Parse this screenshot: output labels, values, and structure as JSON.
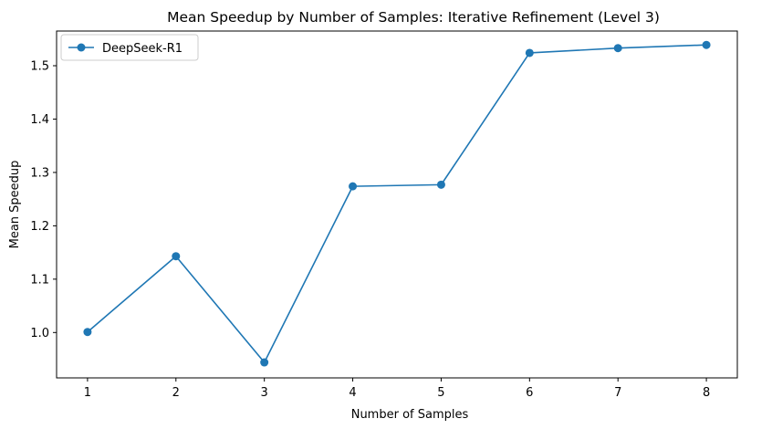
{
  "chart_data": {
    "type": "line",
    "title": "Mean Speedup by Number of Samples: Iterative Refinement (Level 3)",
    "xlabel": "Number of Samples",
    "ylabel": "Mean Speedup",
    "x": [
      1,
      2,
      3,
      4,
      5,
      6,
      7,
      8
    ],
    "xlim": [
      0.65,
      8.35
    ],
    "ylim": [
      0.915,
      1.565
    ],
    "xticks": [
      1,
      2,
      3,
      4,
      5,
      6,
      7,
      8
    ],
    "yticks": [
      1.0,
      1.1,
      1.2,
      1.3,
      1.4,
      1.5
    ],
    "ytick_labels": [
      "1.0",
      "1.1",
      "1.2",
      "1.3",
      "1.4",
      "1.5"
    ],
    "grid": false,
    "legend_position": "top-left",
    "series": [
      {
        "name": "DeepSeek-R1",
        "color": "#1f77b4",
        "marker": "circle",
        "values": [
          1.001,
          1.143,
          0.944,
          1.274,
          1.277,
          1.524,
          1.533,
          1.539
        ]
      }
    ]
  }
}
